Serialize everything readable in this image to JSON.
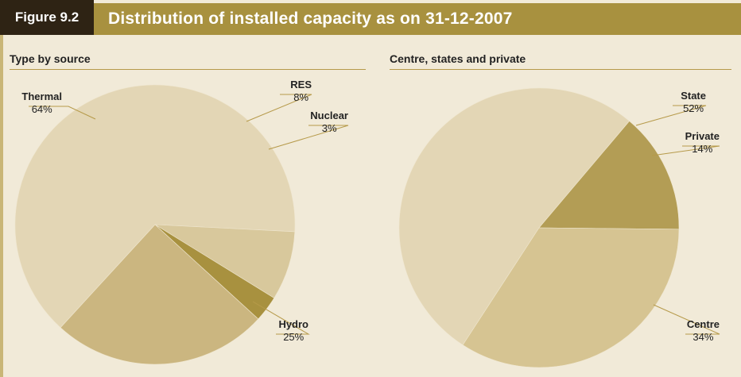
{
  "figure": {
    "label": "Figure 9.2",
    "title": "Distribution of installed capacity as on 31-12-2007"
  },
  "colors": {
    "header_bar": "#a8913f",
    "label_box": "#2e2314",
    "background": "#f1ead8",
    "rule": "#b69a4a"
  },
  "chart_data": [
    {
      "type": "pie",
      "title": "Type by source",
      "slices": [
        {
          "label": "Thermal",
          "value_text": "64%",
          "value": 64,
          "color": "#e3d6b5"
        },
        {
          "label": "RES",
          "value_text": "8%",
          "value": 8,
          "color": "#d8c89c"
        },
        {
          "label": "Nuclear",
          "value_text": "3%",
          "value": 3,
          "color": "#a8913f"
        },
        {
          "label": "Hydro",
          "value_text": "25%",
          "value": 25,
          "color": "#cbb680"
        }
      ]
    },
    {
      "type": "pie",
      "title": "Centre, states and private",
      "slices": [
        {
          "label": "State",
          "value_text": "52%",
          "value": 52,
          "color": "#e3d6b5"
        },
        {
          "label": "Private",
          "value_text": "14%",
          "value": 14,
          "color": "#b39d55"
        },
        {
          "label": "Centre",
          "value_text": "34%",
          "value": 34,
          "color": "#d6c492"
        }
      ]
    }
  ]
}
